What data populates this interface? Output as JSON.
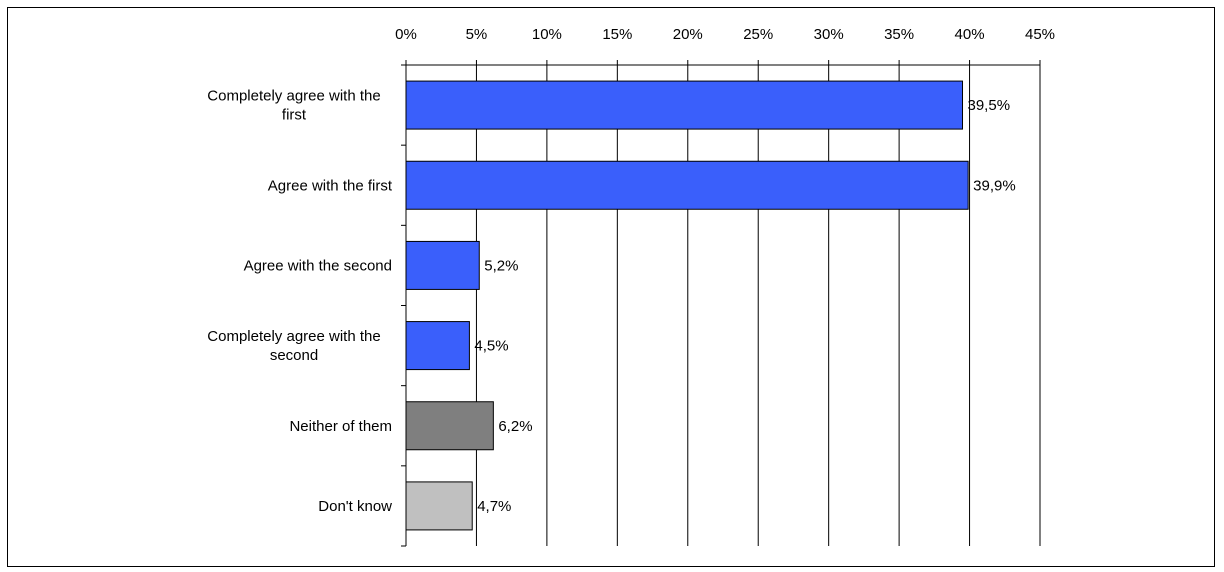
{
  "chart_data": {
    "type": "bar",
    "orientation": "horizontal",
    "categories": [
      "Completely agree with the first",
      "Agree with the first",
      "Agree with the second",
      "Completely agree with the second",
      "Neither of them",
      "Don't know"
    ],
    "category_lines": [
      [
        "Completely agree with the",
        "first"
      ],
      [
        "Agree with the first"
      ],
      [
        "Agree with the second"
      ],
      [
        "Completely agree with the",
        "second"
      ],
      [
        "Neither of them"
      ],
      [
        "Don't know"
      ]
    ],
    "values": [
      39.5,
      39.9,
      5.2,
      4.5,
      6.2,
      4.7
    ],
    "data_labels": [
      "39,5%",
      "39,9%",
      "5,2%",
      "4,5%",
      "6,2%",
      "4,7%"
    ],
    "bar_colors": [
      "#3a5ffb",
      "#3a5ffb",
      "#3a5ffb",
      "#3a5ffb",
      "#7f7f7f",
      "#c0c0c0"
    ],
    "x_ticks": [
      0,
      5,
      10,
      15,
      20,
      25,
      30,
      35,
      40,
      45
    ],
    "x_tick_labels": [
      "0%",
      "5%",
      "10%",
      "15%",
      "20%",
      "25%",
      "30%",
      "35%",
      "40%",
      "45%"
    ],
    "xlim": [
      0,
      45
    ],
    "x_axis_position": "top",
    "grid": true,
    "legend": false,
    "title": "",
    "xlabel": "",
    "ylabel": ""
  }
}
